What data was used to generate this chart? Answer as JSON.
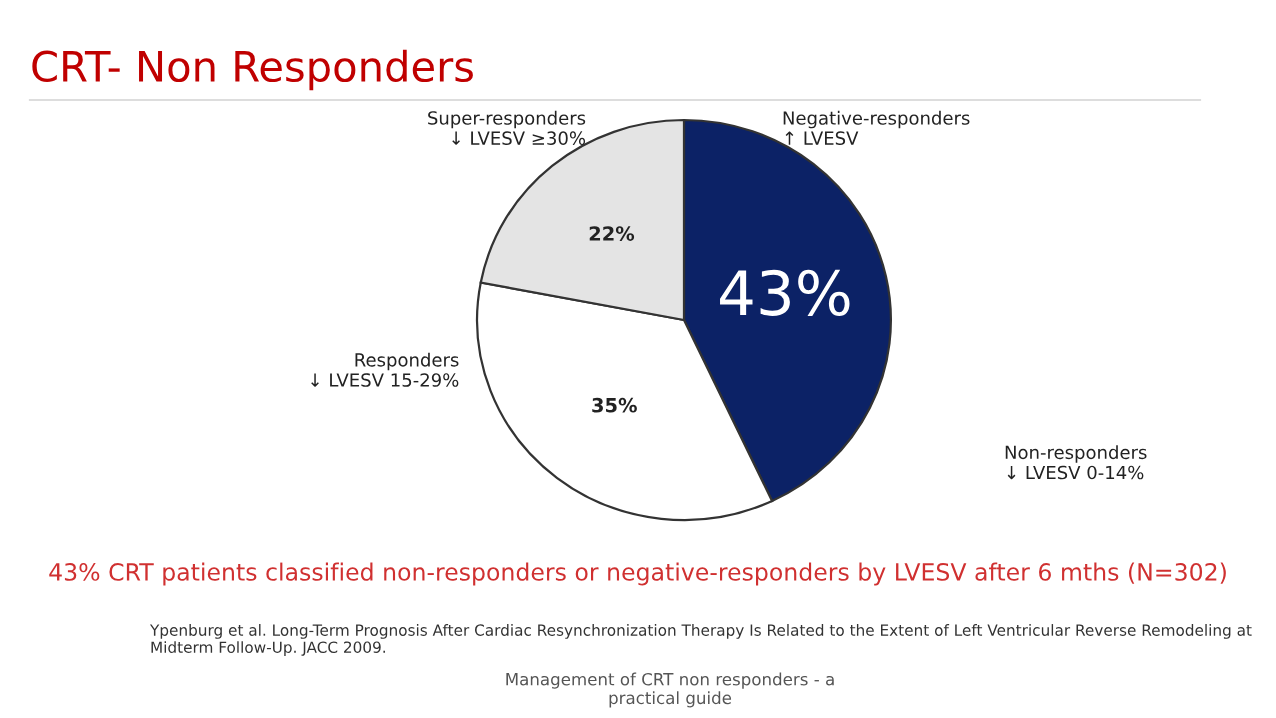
{
  "chart_data": {
    "type": "pie",
    "title": "CRT- Non Responders",
    "categories": [
      "Negative-responders\n↑ LVESV",
      "Responders\n↓ LVESV 15-29%",
      "Super-responders\n↓ LVESV ≥30%"
    ],
    "values": [
      43,
      35,
      22
    ],
    "value_labels": [
      "43%",
      "35%",
      "22%"
    ],
    "colors": [
      "#0c2266",
      "#ffffff",
      "#e4e4e4"
    ],
    "annotations": [
      "Non-responders\n↓ LVESV 0-14%",
      "43% CRT patients classified non-responders or negative-responders by LVESV after 6 mths (N=302)",
      "Ypenburg et al. Long-Term Prognosis After Cardiac Resynchronization Therapy Is Related to the Extent of Left Ventricular Reverse Remodeling at Midterm Follow-Up. JACC 2009.",
      "Management of CRT non responders - a\npractical guide"
    ]
  }
}
